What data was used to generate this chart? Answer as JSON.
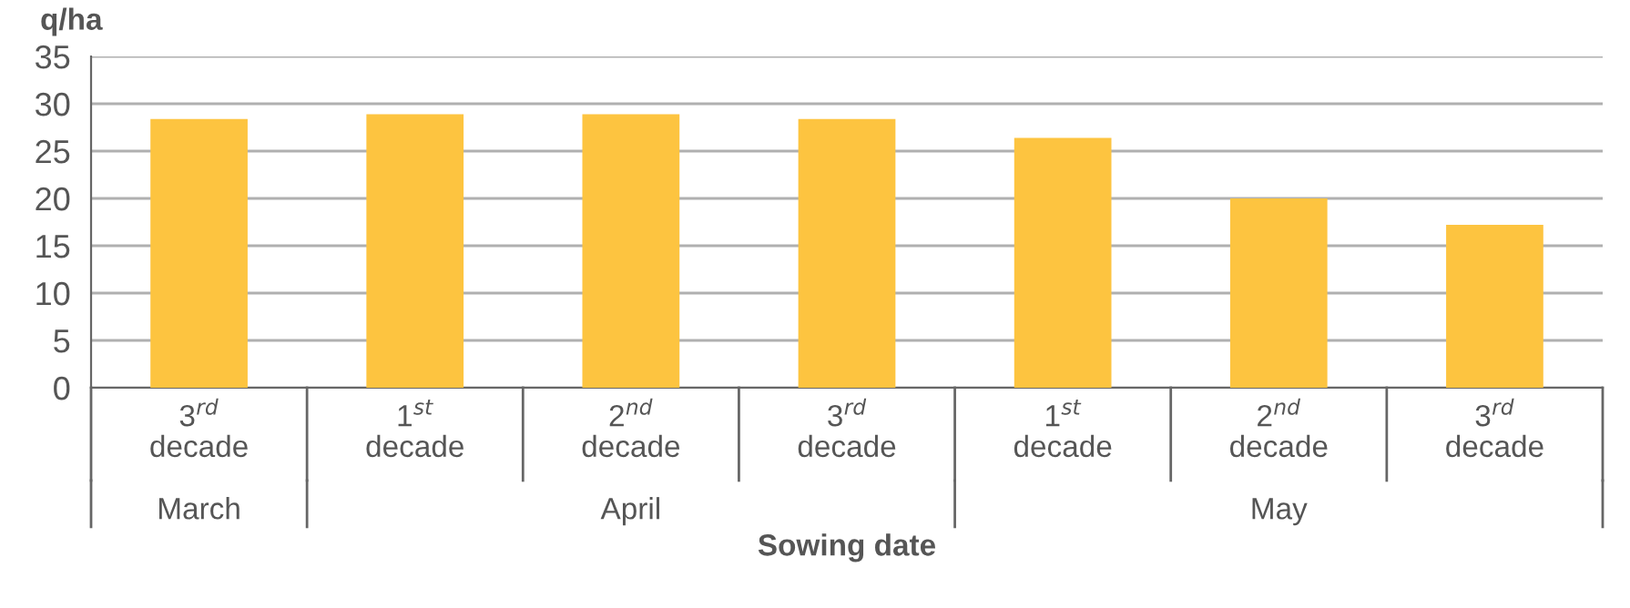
{
  "chart_data": {
    "type": "bar",
    "ylabel": "q/ha",
    "xlabel": "Sowing date",
    "categories": [
      "3$^{rd}$\ndecade",
      "1$^{st}$\ndecade",
      "2$^{nd}$\ndecade",
      "3$^{rd}$\ndecade",
      "1$^{st}$\ndecade",
      "2$^{nd}$\ndecade",
      "3$^{rd}$\ndecade"
    ],
    "values": [
      28.4,
      28.9,
      28.9,
      28.4,
      26.4,
      20.0,
      17.2
    ],
    "color": "#fdc440",
    "ylim": [
      0,
      35
    ],
    "yticks": [
      0,
      5,
      10,
      15,
      20,
      25,
      30,
      35
    ],
    "grid": "y",
    "annotations": [
      "March",
      "April",
      "May"
    ]
  }
}
